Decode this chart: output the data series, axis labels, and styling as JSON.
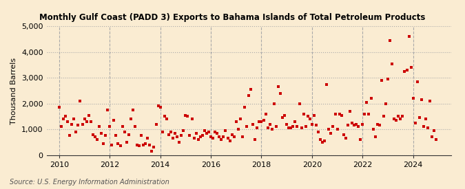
{
  "title": "Monthly Gulf Coast (PADD 3) Exports to Bahama Islands of Total Petroleum Products",
  "ylabel": "Thousand Barrels",
  "source": "Source: U.S. Energy Information Administration",
  "background_color": "#faecd2",
  "dot_color": "#cc0000",
  "ylim": [
    0,
    5000
  ],
  "yticks": [
    0,
    1000,
    2000,
    3000,
    4000,
    5000
  ],
  "xlim_start": 2009.5,
  "xlim_end": 2025.5,
  "xticks": [
    2010,
    2012,
    2014,
    2016,
    2018,
    2020,
    2022,
    2024
  ],
  "data": [
    [
      2010.0,
      1850
    ],
    [
      2010.083,
      1100
    ],
    [
      2010.167,
      1400
    ],
    [
      2010.25,
      1500
    ],
    [
      2010.333,
      1300
    ],
    [
      2010.417,
      750
    ],
    [
      2010.5,
      1200
    ],
    [
      2010.583,
      1400
    ],
    [
      2010.667,
      900
    ],
    [
      2010.75,
      1150
    ],
    [
      2010.833,
      2100
    ],
    [
      2010.917,
      1200
    ],
    [
      2011.0,
      1400
    ],
    [
      2011.083,
      1300
    ],
    [
      2011.167,
      1550
    ],
    [
      2011.25,
      1300
    ],
    [
      2011.333,
      800
    ],
    [
      2011.417,
      700
    ],
    [
      2011.5,
      600
    ],
    [
      2011.583,
      1100
    ],
    [
      2011.667,
      850
    ],
    [
      2011.75,
      430
    ],
    [
      2011.833,
      750
    ],
    [
      2011.917,
      1750
    ],
    [
      2012.0,
      1100
    ],
    [
      2012.083,
      380
    ],
    [
      2012.167,
      1350
    ],
    [
      2012.25,
      750
    ],
    [
      2012.333,
      430
    ],
    [
      2012.417,
      350
    ],
    [
      2012.5,
      1100
    ],
    [
      2012.583,
      900
    ],
    [
      2012.667,
      500
    ],
    [
      2012.75,
      800
    ],
    [
      2012.833,
      1400
    ],
    [
      2012.917,
      1750
    ],
    [
      2013.0,
      1100
    ],
    [
      2013.083,
      400
    ],
    [
      2013.167,
      350
    ],
    [
      2013.25,
      750
    ],
    [
      2013.333,
      400
    ],
    [
      2013.417,
      450
    ],
    [
      2013.5,
      650
    ],
    [
      2013.583,
      380
    ],
    [
      2013.667,
      150
    ],
    [
      2013.75,
      300
    ],
    [
      2013.833,
      1200
    ],
    [
      2013.917,
      1900
    ],
    [
      2014.0,
      1850
    ],
    [
      2014.083,
      900
    ],
    [
      2014.167,
      1500
    ],
    [
      2014.25,
      1400
    ],
    [
      2014.333,
      800
    ],
    [
      2014.417,
      900
    ],
    [
      2014.5,
      650
    ],
    [
      2014.583,
      850
    ],
    [
      2014.667,
      700
    ],
    [
      2014.75,
      500
    ],
    [
      2014.833,
      750
    ],
    [
      2014.917,
      950
    ],
    [
      2015.0,
      1550
    ],
    [
      2015.083,
      1500
    ],
    [
      2015.167,
      750
    ],
    [
      2015.25,
      1400
    ],
    [
      2015.333,
      650
    ],
    [
      2015.417,
      850
    ],
    [
      2015.5,
      600
    ],
    [
      2015.583,
      700
    ],
    [
      2015.667,
      750
    ],
    [
      2015.75,
      950
    ],
    [
      2015.833,
      850
    ],
    [
      2015.917,
      900
    ],
    [
      2016.0,
      700
    ],
    [
      2016.083,
      650
    ],
    [
      2016.167,
      900
    ],
    [
      2016.25,
      850
    ],
    [
      2016.333,
      700
    ],
    [
      2016.417,
      600
    ],
    [
      2016.5,
      700
    ],
    [
      2016.583,
      950
    ],
    [
      2016.667,
      650
    ],
    [
      2016.75,
      550
    ],
    [
      2016.833,
      800
    ],
    [
      2016.917,
      700
    ],
    [
      2017.0,
      1300
    ],
    [
      2017.083,
      1000
    ],
    [
      2017.167,
      1400
    ],
    [
      2017.25,
      700
    ],
    [
      2017.333,
      1850
    ],
    [
      2017.417,
      1100
    ],
    [
      2017.5,
      2300
    ],
    [
      2017.583,
      2550
    ],
    [
      2017.667,
      1200
    ],
    [
      2017.75,
      600
    ],
    [
      2017.833,
      1050
    ],
    [
      2017.917,
      1300
    ],
    [
      2018.0,
      1300
    ],
    [
      2018.083,
      1350
    ],
    [
      2018.167,
      1600
    ],
    [
      2018.25,
      1050
    ],
    [
      2018.333,
      1200
    ],
    [
      2018.417,
      1000
    ],
    [
      2018.5,
      2000
    ],
    [
      2018.583,
      1100
    ],
    [
      2018.667,
      2650
    ],
    [
      2018.75,
      2400
    ],
    [
      2018.833,
      1450
    ],
    [
      2018.917,
      1550
    ],
    [
      2019.0,
      1200
    ],
    [
      2019.083,
      1050
    ],
    [
      2019.167,
      1050
    ],
    [
      2019.25,
      1100
    ],
    [
      2019.333,
      1300
    ],
    [
      2019.417,
      1100
    ],
    [
      2019.5,
      2000
    ],
    [
      2019.583,
      1050
    ],
    [
      2019.667,
      1600
    ],
    [
      2019.75,
      1100
    ],
    [
      2019.833,
      1500
    ],
    [
      2019.917,
      1400
    ],
    [
      2020.0,
      1200
    ],
    [
      2020.083,
      1550
    ],
    [
      2020.167,
      1150
    ],
    [
      2020.25,
      900
    ],
    [
      2020.333,
      600
    ],
    [
      2020.417,
      500
    ],
    [
      2020.5,
      550
    ],
    [
      2020.583,
      2750
    ],
    [
      2020.667,
      1000
    ],
    [
      2020.75,
      850
    ],
    [
      2020.833,
      1100
    ],
    [
      2020.917,
      1600
    ],
    [
      2021.0,
      1000
    ],
    [
      2021.083,
      1600
    ],
    [
      2021.167,
      1550
    ],
    [
      2021.25,
      800
    ],
    [
      2021.333,
      650
    ],
    [
      2021.417,
      1150
    ],
    [
      2021.5,
      1700
    ],
    [
      2021.583,
      1250
    ],
    [
      2021.667,
      1150
    ],
    [
      2021.75,
      1200
    ],
    [
      2021.833,
      1100
    ],
    [
      2021.917,
      600
    ],
    [
      2022.0,
      1200
    ],
    [
      2022.083,
      1600
    ],
    [
      2022.167,
      2050
    ],
    [
      2022.25,
      1600
    ],
    [
      2022.333,
      2200
    ],
    [
      2022.417,
      1000
    ],
    [
      2022.5,
      700
    ],
    [
      2022.583,
      1200
    ],
    [
      2022.667,
      1150
    ],
    [
      2022.75,
      2900
    ],
    [
      2022.833,
      1500
    ],
    [
      2022.917,
      2000
    ],
    [
      2023.0,
      2950
    ],
    [
      2023.083,
      4450
    ],
    [
      2023.167,
      3550
    ],
    [
      2023.25,
      1400
    ],
    [
      2023.333,
      1350
    ],
    [
      2023.417,
      1500
    ],
    [
      2023.5,
      1400
    ],
    [
      2023.583,
      1500
    ],
    [
      2023.667,
      3250
    ],
    [
      2023.75,
      3300
    ],
    [
      2023.833,
      4600
    ],
    [
      2023.917,
      3400
    ],
    [
      2024.0,
      2200
    ],
    [
      2024.083,
      1250
    ],
    [
      2024.167,
      2850
    ],
    [
      2024.25,
      1450
    ],
    [
      2024.333,
      2150
    ],
    [
      2024.417,
      1100
    ],
    [
      2024.5,
      1400
    ],
    [
      2024.583,
      1050
    ],
    [
      2024.667,
      2100
    ],
    [
      2024.75,
      700
    ],
    [
      2024.833,
      950
    ],
    [
      2024.917,
      600
    ]
  ]
}
